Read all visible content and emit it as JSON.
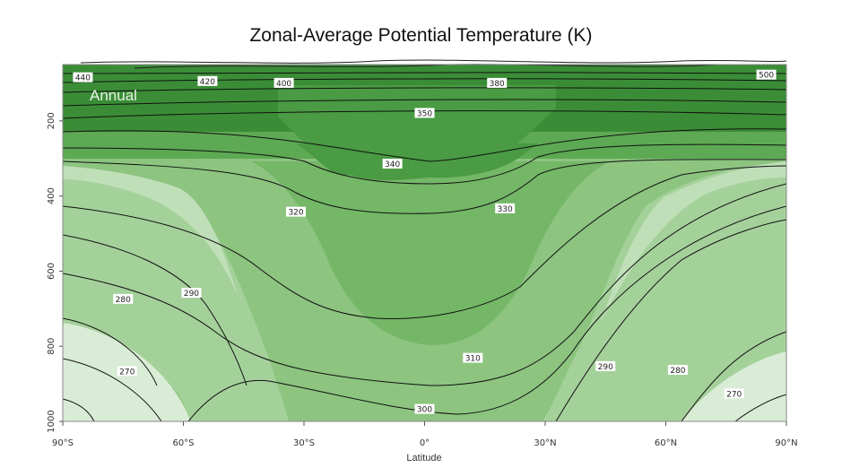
{
  "chart_data": {
    "type": "heatmap",
    "title": "Zonal-Average Potential Temperature (K)",
    "xlabel": "Latitude",
    "ylabel": "",
    "annotation": "Annual",
    "x_ticks": [
      "90°S",
      "60°S",
      "30°S",
      "0°",
      "30°N",
      "60°N",
      "90°N"
    ],
    "y_ticks": [
      "200",
      "400",
      "600",
      "800",
      "1000"
    ],
    "xlim": [
      -90,
      90
    ],
    "ylim": [
      1000,
      50
    ],
    "contour_levels_labeled": [
      {
        "value": "440",
        "lat": -85,
        "p": 85
      },
      {
        "value": "420",
        "lat": -54,
        "p": 95
      },
      {
        "value": "400",
        "lat": -35,
        "p": 100
      },
      {
        "value": "380",
        "lat": 18,
        "p": 100
      },
      {
        "value": "500",
        "lat": 85,
        "p": 78
      },
      {
        "value": "350",
        "lat": 0,
        "p": 180
      },
      {
        "value": "340",
        "lat": -8,
        "p": 315
      },
      {
        "value": "330",
        "lat": 20,
        "p": 434
      },
      {
        "value": "320",
        "lat": -32,
        "p": 443
      },
      {
        "value": "310",
        "lat": 12,
        "p": 832
      },
      {
        "value": "300",
        "lat": 0,
        "p": 968
      },
      {
        "value": "290",
        "lat": -58,
        "p": 659
      },
      {
        "value": "290",
        "lat": 45,
        "p": 854
      },
      {
        "value": "280",
        "lat": -75,
        "p": 675
      },
      {
        "value": "280",
        "lat": 63,
        "p": 864
      },
      {
        "value": "270",
        "lat": -74,
        "p": 867
      },
      {
        "value": "270",
        "lat": 77,
        "p": 927
      }
    ],
    "fill_colors": [
      "#d9ecd6",
      "#bfdfb8",
      "#a4d19a",
      "#8cc480",
      "#74b767",
      "#5ea954",
      "#4a9b43",
      "#3a8d36"
    ]
  }
}
